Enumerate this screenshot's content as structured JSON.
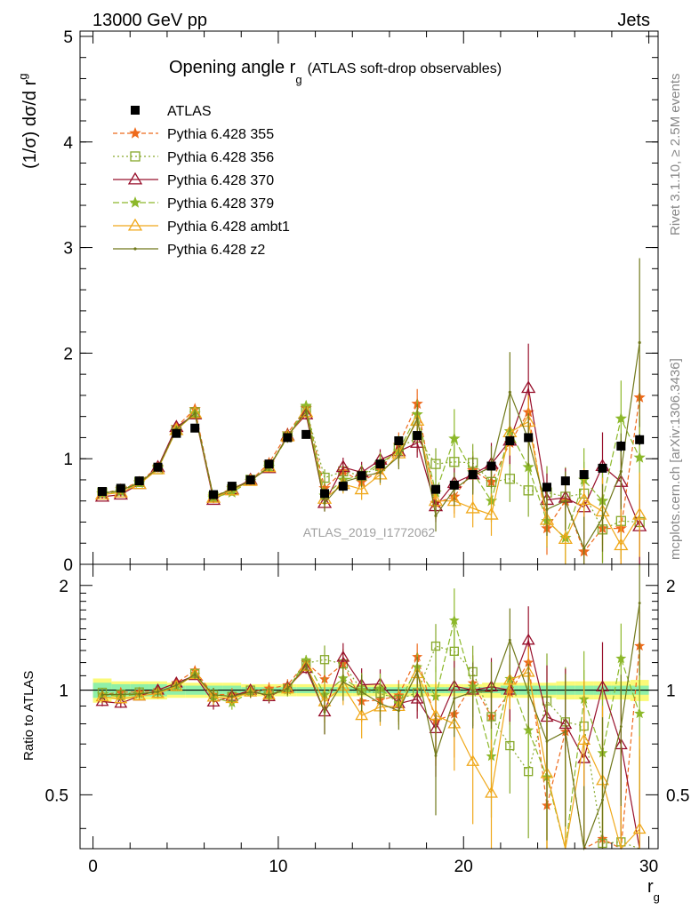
{
  "header": {
    "left": "13000 GeV pp",
    "right": "Jets"
  },
  "side": {
    "rivet": "Rivet 3.1.10, ≥ 2.5M events",
    "mcplots": "mcplots.cern.ch [arXiv:1306.3436]"
  },
  "colors": {
    "ATLAS": "#000000",
    "355": "#ee6a1c",
    "356": "#86a82a",
    "370": "#98102c",
    "379": "#8cb82a",
    "ambt1": "#f0a81a",
    "z2": "#70781a",
    "band_inner": "#8ff0a8",
    "band_outer": "#fafa78"
  },
  "chart_data": {
    "type": "line",
    "title_main": "Opening angle r",
    "title_sub": "g",
    "title_paren": "(ATLAS soft-drop observables)",
    "watermark": "ATLAS_2019_I1772062",
    "ylabel": "(1/σ) dσ/d r",
    "ylabel_sub": "g",
    "xlabel": "r",
    "xlabel_sub": "g",
    "ratio_ylabel": "Ratio to ATLAS",
    "xlim": [
      -0.7,
      30.5
    ],
    "ylim": [
      0,
      5.05
    ],
    "ratio_ylim": [
      0.35,
      2.3
    ],
    "x_ticks": [
      "0",
      "10",
      "20",
      "30"
    ],
    "y_ticks": [
      "0",
      "1",
      "2",
      "3",
      "4",
      "5"
    ],
    "ratio_ticks": [
      "0.5",
      "1",
      "2"
    ],
    "x": [
      0.5,
      1.5,
      2.5,
      3.5,
      4.5,
      5.5,
      6.5,
      7.5,
      8.5,
      9.5,
      10.5,
      11.5,
      12.5,
      13.5,
      14.5,
      15.5,
      16.5,
      17.5,
      18.5,
      19.5,
      20.5,
      21.5,
      22.5,
      23.5,
      24.5,
      25.5,
      26.5,
      27.5,
      28.5,
      29.5
    ],
    "band": {
      "inner": [
        0.05,
        0.04,
        0.04,
        0.04,
        0.03,
        0.03,
        0.03,
        0.03,
        0.02,
        0.02,
        0.02,
        0.02,
        0.02,
        0.02,
        0.02,
        0.02,
        0.02,
        0.02,
        0.02,
        0.02,
        0.02,
        0.02,
        0.03,
        0.03,
        0.03,
        0.03,
        0.03,
        0.03,
        0.03,
        0.03
      ],
      "outer": [
        0.08,
        0.06,
        0.06,
        0.06,
        0.05,
        0.05,
        0.05,
        0.05,
        0.04,
        0.04,
        0.04,
        0.04,
        0.04,
        0.04,
        0.04,
        0.04,
        0.04,
        0.04,
        0.04,
        0.04,
        0.04,
        0.05,
        0.05,
        0.05,
        0.05,
        0.06,
        0.06,
        0.06,
        0.06,
        0.07
      ]
    },
    "series": [
      {
        "name": "ATLAS",
        "values": [
          0.69,
          0.72,
          0.79,
          0.92,
          1.24,
          1.29,
          0.66,
          0.74,
          0.8,
          0.95,
          1.2,
          1.23,
          0.67,
          0.74,
          0.84,
          0.95,
          1.17,
          1.22,
          0.71,
          0.75,
          0.85,
          0.93,
          1.17,
          1.2,
          0.73,
          0.79,
          0.85,
          0.91,
          1.12,
          1.18
        ],
        "errors": [
          0.01,
          0.01,
          0.01,
          0.01,
          0.02,
          0.02,
          0.01,
          0.01,
          0.01,
          0.02,
          0.02,
          0.02,
          0.01,
          0.02,
          0.02,
          0.02,
          0.03,
          0.03,
          0.02,
          0.02,
          0.03,
          0.03,
          0.04,
          0.04,
          0.03,
          0.03,
          0.04,
          0.04,
          0.05,
          0.05
        ]
      },
      {
        "name": "Pythia 6.428 355",
        "values": [
          0.67,
          0.71,
          0.78,
          0.92,
          1.3,
          1.47,
          0.64,
          0.72,
          0.79,
          0.96,
          1.24,
          1.48,
          0.72,
          0.88,
          0.78,
          0.89,
          1.13,
          1.52,
          0.58,
          0.64,
          0.89,
          0.78,
          1.15,
          1.44,
          0.34,
          0.6,
          0.12,
          0.34,
          0.34,
          1.58
        ],
        "errors": [
          0.02,
          0.02,
          0.02,
          0.03,
          0.03,
          0.04,
          0.03,
          0.03,
          0.03,
          0.04,
          0.05,
          0.05,
          0.08,
          0.09,
          0.1,
          0.1,
          0.12,
          0.14,
          0.15,
          0.16,
          0.18,
          0.2,
          0.22,
          0.25,
          0.25,
          0.28,
          0.3,
          0.32,
          0.36,
          0.4
        ]
      },
      {
        "name": "Pythia 6.428 356",
        "values": [
          0.68,
          0.7,
          0.78,
          0.9,
          1.27,
          1.44,
          0.64,
          0.71,
          0.8,
          0.93,
          1.21,
          1.47,
          0.82,
          0.88,
          0.84,
          0.93,
          1.1,
          1.2,
          0.95,
          0.97,
          0.96,
          0.78,
          0.81,
          0.7,
          0.68,
          0.64,
          0.67,
          0.33,
          0.41,
          0.4
        ],
        "errors": [
          0.02,
          0.02,
          0.02,
          0.03,
          0.03,
          0.04,
          0.03,
          0.03,
          0.03,
          0.04,
          0.05,
          0.05,
          0.08,
          0.09,
          0.1,
          0.1,
          0.12,
          0.14,
          0.15,
          0.16,
          0.18,
          0.2,
          0.22,
          0.25,
          0.25,
          0.28,
          0.3,
          0.32,
          0.36,
          0.4
        ]
      },
      {
        "name": "Pythia 6.428 370",
        "values": [
          0.64,
          0.66,
          0.76,
          0.92,
          1.3,
          1.42,
          0.61,
          0.71,
          0.8,
          0.91,
          1.22,
          1.42,
          0.58,
          0.92,
          0.87,
          0.99,
          1.07,
          1.15,
          0.55,
          0.77,
          0.85,
          0.95,
          1.17,
          1.67,
          0.61,
          0.63,
          0.54,
          0.93,
          0.78,
          0.36
        ],
        "errors": [
          0.02,
          0.02,
          0.02,
          0.03,
          0.03,
          0.04,
          0.03,
          0.03,
          0.03,
          0.04,
          0.05,
          0.05,
          0.08,
          0.09,
          0.1,
          0.1,
          0.12,
          0.14,
          0.15,
          0.16,
          0.18,
          0.2,
          0.22,
          0.42,
          0.25,
          0.28,
          0.3,
          0.32,
          0.36,
          0.4
        ]
      },
      {
        "name": "Pythia 6.428 379",
        "values": [
          0.67,
          0.69,
          0.77,
          0.91,
          1.27,
          1.43,
          0.63,
          0.68,
          0.79,
          0.92,
          1.2,
          1.5,
          0.65,
          0.8,
          0.84,
          0.96,
          1.07,
          1.42,
          0.68,
          1.19,
          0.87,
          0.6,
          1.26,
          0.92,
          0.41,
          0.25,
          0.8,
          0.6,
          1.38,
          1.01
        ],
        "errors": [
          0.02,
          0.02,
          0.02,
          0.03,
          0.03,
          0.04,
          0.03,
          0.03,
          0.03,
          0.04,
          0.05,
          0.05,
          0.08,
          0.09,
          0.1,
          0.1,
          0.12,
          0.14,
          0.15,
          0.28,
          0.18,
          0.2,
          0.22,
          0.25,
          0.25,
          0.28,
          0.3,
          0.32,
          0.36,
          0.4
        ]
      },
      {
        "name": "Pythia 6.428 ambt1",
        "values": [
          0.66,
          0.68,
          0.76,
          0.9,
          1.27,
          1.43,
          0.63,
          0.7,
          0.79,
          0.92,
          1.21,
          1.44,
          0.62,
          0.76,
          0.71,
          0.85,
          1.05,
          1.36,
          0.6,
          0.6,
          0.53,
          0.47,
          1.25,
          1.35,
          0.42,
          0.24,
          0.61,
          0.5,
          0.18,
          0.47
        ],
        "errors": [
          0.02,
          0.02,
          0.02,
          0.03,
          0.03,
          0.04,
          0.03,
          0.03,
          0.03,
          0.04,
          0.05,
          0.05,
          0.08,
          0.09,
          0.1,
          0.1,
          0.12,
          0.14,
          0.15,
          0.16,
          0.18,
          0.2,
          0.22,
          0.25,
          0.25,
          0.28,
          0.3,
          0.32,
          0.36,
          0.4
        ]
      },
      {
        "name": "Pythia 6.428 z2",
        "values": [
          0.67,
          0.7,
          0.77,
          0.91,
          1.28,
          1.43,
          0.64,
          0.71,
          0.79,
          0.92,
          1.21,
          1.45,
          0.58,
          0.78,
          0.83,
          0.87,
          1.02,
          1.38,
          0.46,
          0.71,
          0.84,
          0.92,
          1.63,
          1.18,
          0.52,
          0.6,
          0.15,
          0.44,
          0.88,
          2.1
        ],
        "errors": [
          0.02,
          0.02,
          0.02,
          0.03,
          0.03,
          0.04,
          0.03,
          0.03,
          0.03,
          0.04,
          0.05,
          0.05,
          0.08,
          0.09,
          0.1,
          0.1,
          0.12,
          0.14,
          0.15,
          0.16,
          0.18,
          0.2,
          0.38,
          0.25,
          0.25,
          0.28,
          0.3,
          0.32,
          0.36,
          0.8
        ]
      }
    ]
  }
}
